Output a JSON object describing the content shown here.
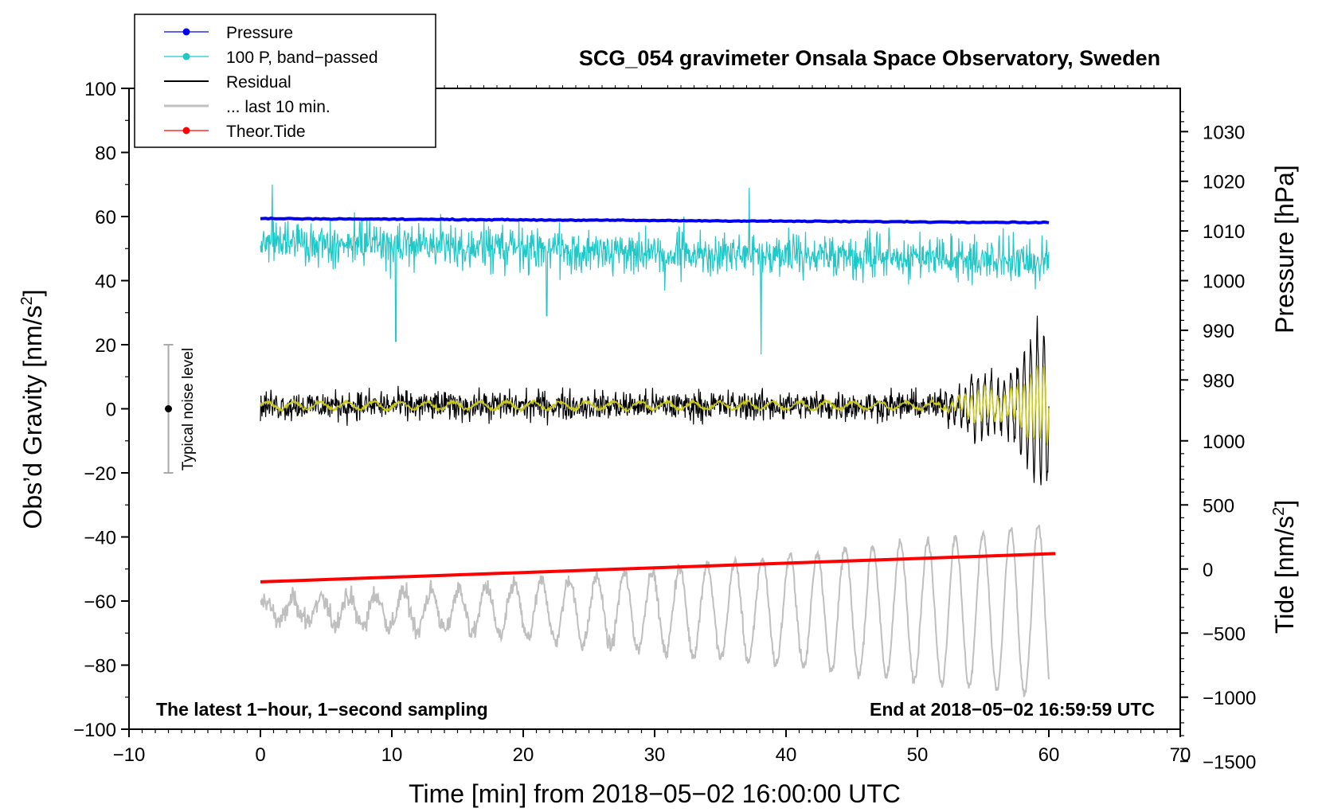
{
  "chart_data": {
    "type": "line",
    "title": "SCG_054 gravimeter Onsala Space Observatory, Sweden",
    "xlabel": "Time [min] from 2018−05−02 16:00:00 UTC",
    "ylabel": "Obs’d Gravity [nm/s2]",
    "ylabel_main": "Obs’d Gravity [nm/s",
    "ylabel_sup": "2",
    "ylabel_end": "]",
    "xlim": [
      -10,
      70
    ],
    "ylim": [
      -100,
      100
    ],
    "x_ticks": [
      -10,
      0,
      10,
      20,
      30,
      40,
      50,
      60,
      70
    ],
    "x_tick_labels": [
      "−10",
      "0",
      "10",
      "20",
      "30",
      "40",
      "50",
      "60",
      "70"
    ],
    "y_ticks": [
      -100,
      -80,
      -60,
      -40,
      -20,
      0,
      20,
      40,
      60,
      80,
      100
    ],
    "y_tick_labels": [
      "−100",
      "−80",
      "−60",
      "−40",
      "−20",
      "0",
      "20",
      "40",
      "60",
      "80",
      "100"
    ],
    "pressure_axis": {
      "label": "Pressure [hPa]",
      "ticks": [
        980,
        990,
        1000,
        1010,
        1020,
        1030
      ],
      "tick_labels": [
        "980",
        "990",
        "1000",
        "1010",
        "1020",
        "1030"
      ],
      "gravity_at_1000": 40,
      "gravity_per_hpa": 1.55
    },
    "tide_axis": {
      "label_main": "Tide [nm/s",
      "label_sup": "2",
      "label_end": "]",
      "ticks": [
        -1500,
        -1000,
        -500,
        0,
        500,
        1000
      ],
      "tick_labels": [
        "−1500",
        "−1000",
        "−500",
        "0",
        "500",
        "1000"
      ],
      "gravity_at_0": -50,
      "gravity_per_unit": 0.04
    },
    "legend": [
      {
        "name": "Pressure",
        "color": "#0000ee",
        "marker": true
      },
      {
        "name": "100 P, band−passed",
        "color": "#20c8c8",
        "marker": true
      },
      {
        "name": "Residual",
        "color": "#000000",
        "marker": false
      },
      {
        "name": "... last 10 min.",
        "color": "#bfbfbf",
        "marker": false
      },
      {
        "name": "Theor.Tide",
        "color": "#ff0000",
        "marker": true
      }
    ],
    "series": [
      {
        "name": "Pressure",
        "color": "#0000ee",
        "unit": "hPa",
        "x_range": [
          0,
          60
        ],
        "start_value": 1012.5,
        "end_value": 1011.7
      },
      {
        "name": "100 P, band−passed",
        "color": "#20c8c8",
        "unit": "nm/s2 (plotted)",
        "x_range": [
          0,
          60
        ],
        "center_start": 52,
        "center_end": 46,
        "amplitude": 7,
        "spikes": [
          {
            "x": 10.3,
            "y": 21
          },
          {
            "x": 38.1,
            "y": 17
          },
          {
            "x": 21.8,
            "y": 29
          },
          {
            "x": 0.9,
            "y": 70
          },
          {
            "x": 37.2,
            "y": 69
          }
        ]
      },
      {
        "name": "Residual",
        "color": "#000000",
        "unit": "nm/s2",
        "x_range": [
          0,
          60
        ],
        "center": 1,
        "noise_amplitude": 4,
        "late_oscillation": {
          "start_min": 50,
          "peak_amplitude": 28,
          "period_min": 0.5
        }
      },
      {
        "name": "Residual smoothed",
        "color": "#c8c81e",
        "unit": "nm/s2",
        "x_range": [
          0,
          60
        ],
        "center": 1,
        "late_peak_amplitude": 13
      },
      {
        "name": "... last 10 min.",
        "color": "#bfbfbf",
        "unit": "nm/s2 (plotted)",
        "x_range": [
          0,
          60
        ],
        "center": -63,
        "amplitude_start": 3,
        "amplitude_end": 27,
        "period_min": 2.1
      },
      {
        "name": "Theor.Tide",
        "color": "#ff0000",
        "unit": "nm/s2",
        "x": [
          0,
          60.5
        ],
        "y": [
          -100,
          120
        ]
      }
    ],
    "noise_bar": {
      "label": "Typical noise level",
      "x": -7,
      "low": -20,
      "high": 20,
      "center": 0
    },
    "annotations": {
      "bottom_left": "The latest 1−hour, 1−second sampling",
      "bottom_right": "End at 2018−05−02 16:59:59 UTC"
    },
    "colors": {
      "pressure": "#0000ee",
      "band_passed": "#20c8c8",
      "residual": "#000000",
      "smoothed": "#c8c81e",
      "last10": "#bfbfbf",
      "tide": "#ff0000",
      "noise_bar": "#aaaaaa"
    }
  }
}
